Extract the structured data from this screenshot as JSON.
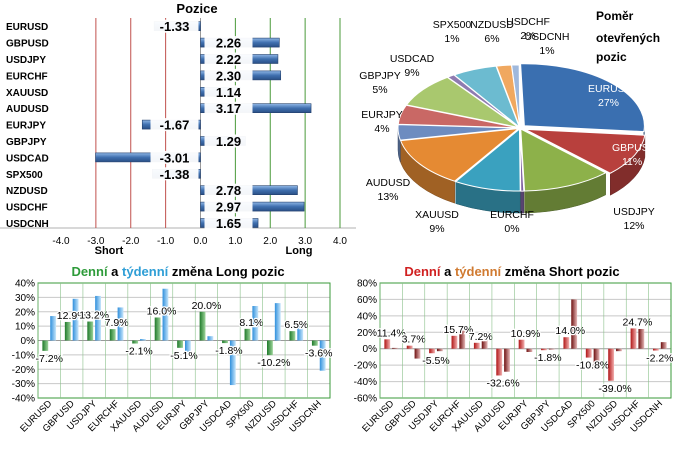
{
  "chart_data": [
    {
      "type": "bar",
      "orientation": "horizontal",
      "title": "Pozice",
      "categories": [
        "EURUSD",
        "GBPUSD",
        "USDJPY",
        "EURCHF",
        "XAUUSD",
        "AUDUSD",
        "EURJPY",
        "GBPJPY",
        "USDCAD",
        "SPX500",
        "NZDUSD",
        "USDCHF",
        "USDCNH"
      ],
      "values": [
        -1.33,
        2.26,
        2.22,
        2.3,
        1.14,
        3.17,
        -1.67,
        1.29,
        -3.01,
        -1.38,
        2.78,
        2.97,
        1.65
      ],
      "value_labels": [
        "-1.33",
        "2.26",
        "2.22",
        "2.30",
        "1.14",
        "3.17",
        "-1.67",
        "1.29",
        "-3.01",
        "-1.38",
        "2.78",
        "2.97",
        "1.65"
      ],
      "xlim": [
        -4,
        4
      ],
      "xticks": [
        "-4.0",
        "-3.0",
        "-2.0",
        "-1.0",
        "0.0",
        "1.0",
        "2.0",
        "3.0",
        "4.0"
      ],
      "side_labels": {
        "short": "Short",
        "long": "Long"
      }
    },
    {
      "type": "pie",
      "title": "Poměr otevřených pozic",
      "labels": [
        "EURUSD",
        "GBPUSD",
        "USDJPY",
        "EURCHF",
        "XAUUSD",
        "AUDUSD",
        "EURJPY",
        "GBPJPY",
        "USDCAD",
        "SPX500",
        "NZDUSD",
        "USDCHF",
        "USDCNH"
      ],
      "values": [
        27,
        11,
        12,
        0,
        9,
        13,
        4,
        5,
        9,
        1,
        6,
        2,
        1
      ],
      "value_labels": [
        "27%",
        "11%",
        "12%",
        "0%",
        "9%",
        "13%",
        "4%",
        "5%",
        "9%",
        "1%",
        "6%",
        "2%",
        "1%"
      ],
      "colors": [
        "#3a6fb0",
        "#b8403d",
        "#8db14a",
        "#7d5fa0",
        "#3aa1bf",
        "#e58a33",
        "#6d8cc0",
        "#c96865",
        "#a9c86e",
        "#8f7bb0",
        "#6cbbd0",
        "#f0a860",
        "#9fb8dc"
      ]
    },
    {
      "type": "bar",
      "title": "Denní a týdenní změna Long pozic",
      "title_parts": [
        "Denní",
        " a ",
        "týdenní",
        " změna Long pozic"
      ],
      "title_colors": [
        "#2e9b3a",
        "#000000",
        "#2e9ed6",
        "#000000"
      ],
      "categories": [
        "EURUSD",
        "GBPUSD",
        "USDJPY",
        "EURCHF",
        "XAUUSD",
        "AUDUSD",
        "EURJPY",
        "GBPJPY",
        "USDCAD",
        "SPX500",
        "NZDUSD",
        "USDCHF",
        "USDCNH"
      ],
      "series": [
        {
          "name": "Denní",
          "values": [
            -7.2,
            12.9,
            13.2,
            7.9,
            -2.1,
            16.0,
            -5.1,
            20.0,
            -1.8,
            8.1,
            -10.2,
            6.5,
            -3.6
          ]
        },
        {
          "name": "týdenní",
          "values": [
            17,
            29,
            31,
            23,
            1,
            36,
            -8,
            3,
            -31,
            24,
            26,
            10,
            -21
          ]
        }
      ],
      "data_labels": [
        "-7.2%",
        "12.9%",
        "13.2%",
        "7.9%",
        "-2.1%",
        "16.0%",
        "-5.1%",
        "20.0%",
        "-1.8%",
        "8.1%",
        "-10.2%",
        "6.5%",
        "-3.6%"
      ],
      "yticks": [
        "40%",
        "30%",
        "20%",
        "10%",
        "0%",
        "-10%",
        "-20%",
        "-30%",
        "-40%"
      ],
      "ylim": [
        -40,
        40
      ],
      "colors": {
        "daily": "#2e8b2e",
        "weekly": "#5aaee8"
      }
    },
    {
      "type": "bar",
      "title": "Denní a týdenní změna Short pozic",
      "title_parts": [
        "Denní",
        " a ",
        "týdenní",
        " změna Short pozic"
      ],
      "title_colors": [
        "#d02020",
        "#000000",
        "#d07a30",
        "#000000"
      ],
      "categories": [
        "EURUSD",
        "GBPUSD",
        "USDJPY",
        "EURCHF",
        "XAUUSD",
        "AUDUSD",
        "EURJPY",
        "GBPJPY",
        "USDCAD",
        "SPX500",
        "NZDUSD",
        "USDCHF",
        "USDCNH"
      ],
      "series": [
        {
          "name": "Denní",
          "values": [
            11.4,
            3.7,
            -5.5,
            15.7,
            7.2,
            -32.6,
            10.9,
            -1.8,
            14.0,
            -10.8,
            -39.0,
            24.7,
            -2.2
          ]
        },
        {
          "name": "týdenní",
          "values": [
            1,
            -12,
            -3,
            22,
            12,
            -28,
            -4,
            -1,
            60,
            -25,
            -3,
            24,
            8
          ]
        }
      ],
      "data_labels": [
        "11.4%",
        "3.7%",
        "-5.5%",
        "15.7%",
        "7.2%",
        "-32.6%",
        "10.9%",
        "-1.8%",
        "14.0%",
        "-10.8%",
        "-39.0%",
        "24.7%",
        "-2.2%"
      ],
      "yticks": [
        "80%",
        "60%",
        "40%",
        "20%",
        "0%",
        "-20%",
        "-40%",
        "-60%"
      ],
      "ylim": [
        -60,
        80
      ],
      "colors": {
        "daily": "#c81e1e",
        "weekly": "#8b1a1a"
      }
    }
  ]
}
